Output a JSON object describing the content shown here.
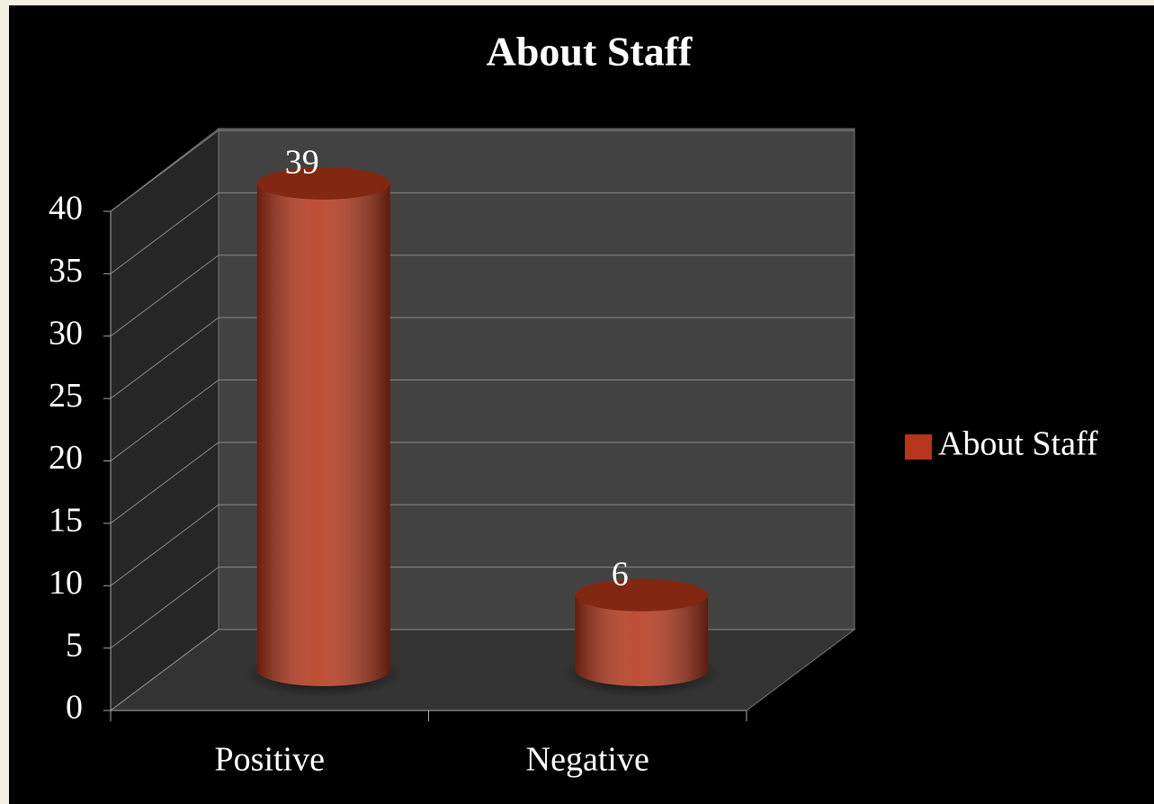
{
  "chart_data": {
    "type": "bar3d",
    "title": "About Staff",
    "categories": [
      "Positive",
      "Negative"
    ],
    "series": [
      {
        "name": "About Staff",
        "color": "#b5361a",
        "values": [
          39,
          6
        ]
      }
    ],
    "ylim": [
      0,
      40
    ],
    "yticks": [
      0,
      5,
      10,
      15,
      20,
      25,
      30,
      35,
      40
    ],
    "grid": true,
    "legend": "right"
  }
}
